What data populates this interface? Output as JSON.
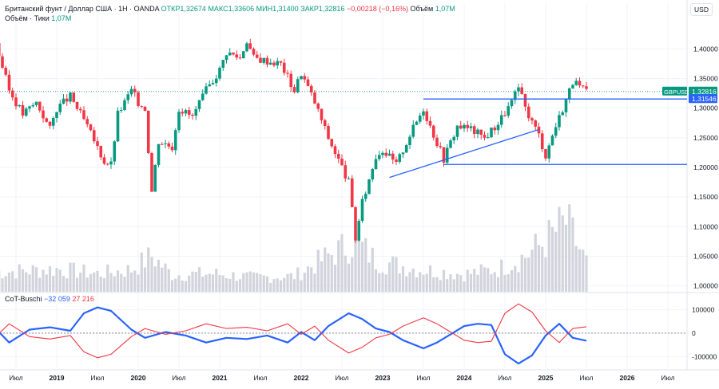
{
  "header": {
    "title": "Британский фунт / Доллар США · 1Н · OANDA",
    "open_label": "ОТКР",
    "open": "1,32674",
    "high_label": "МАКС",
    "high": "1,33606",
    "low_label": "МИН",
    "low": "1,31400",
    "close_label": "ЗАКР",
    "close": "1,32816",
    "change": "−0,00218 (−0,16%)",
    "volume_label": "Объём",
    "volume": "1,07M",
    "subtitle": "Объём · Тики",
    "subtitle_value": "1,07M",
    "currency_button": "USD"
  },
  "indicator": {
    "name": "CoT-Buschi",
    "value_blue": "−32 059",
    "value_red": "27 216"
  },
  "colors": {
    "up": "#089981",
    "down": "#f23645",
    "line": "#2962ff",
    "volume": "#d1d4dc",
    "grid": "#f0f3fa",
    "axis_text": "#131722"
  },
  "chart_data": [
    {
      "type": "candlestick",
      "symbol": "GBPUSD",
      "price_axis_ticks": [
        "1,40000",
        "1,35000",
        "1,30000",
        "1,25000",
        "1,20000",
        "1,15000",
        "1,10000",
        "1,05000",
        "1,00000"
      ],
      "price_axis_values": [
        1.4,
        1.35,
        1.3,
        1.25,
        1.2,
        1.15,
        1.1,
        1.05,
        1.0
      ],
      "ylim": [
        0.99,
        1.445
      ],
      "time_axis_labels": [
        "Июл",
        "2019",
        "Июл",
        "2020",
        "Июл",
        "2021",
        "Июл",
        "2022",
        "Июл",
        "2023",
        "Июл",
        "2024",
        "Июл",
        "2025",
        "Июл",
        "2026",
        "Июл"
      ],
      "time_axis_dates": [
        "2018-07",
        "2019-01",
        "2019-07",
        "2020-01",
        "2020-07",
        "2021-01",
        "2021-07",
        "2022-01",
        "2022-07",
        "2023-01",
        "2023-07",
        "2024-01",
        "2024-07",
        "2025-01",
        "2025-07",
        "2026-01",
        "2026-07"
      ],
      "price_path": [
        [
          "2018-04",
          1.41
        ],
        [
          "2018-06",
          1.33
        ],
        [
          "2018-08",
          1.29
        ],
        [
          "2018-10",
          1.31
        ],
        [
          "2018-12",
          1.265
        ],
        [
          "2019-01",
          1.3
        ],
        [
          "2019-03",
          1.32
        ],
        [
          "2019-05",
          1.28
        ],
        [
          "2019-08",
          1.21
        ],
        [
          "2019-09",
          1.205
        ],
        [
          "2019-10",
          1.29
        ],
        [
          "2019-12",
          1.33
        ],
        [
          "2020-01",
          1.31
        ],
        [
          "2020-02",
          1.3
        ],
        [
          "2020-03",
          1.16
        ],
        [
          "2020-04",
          1.245
        ],
        [
          "2020-06",
          1.235
        ],
        [
          "2020-07",
          1.3
        ],
        [
          "2020-09",
          1.285
        ],
        [
          "2020-11",
          1.33
        ],
        [
          "2021-01",
          1.365
        ],
        [
          "2021-02",
          1.395
        ],
        [
          "2021-04",
          1.385
        ],
        [
          "2021-05",
          1.415
        ],
        [
          "2021-06",
          1.385
        ],
        [
          "2021-08",
          1.38
        ],
        [
          "2021-10",
          1.375
        ],
        [
          "2021-12",
          1.33
        ],
        [
          "2022-01",
          1.36
        ],
        [
          "2022-03",
          1.31
        ],
        [
          "2022-05",
          1.25
        ],
        [
          "2022-07",
          1.2
        ],
        [
          "2022-08",
          1.175
        ],
        [
          "2022-09",
          1.08
        ],
        [
          "2022-10",
          1.14
        ],
        [
          "2022-12",
          1.22
        ],
        [
          "2023-01",
          1.23
        ],
        [
          "2023-03",
          1.205
        ],
        [
          "2023-05",
          1.255
        ],
        [
          "2023-07",
          1.3
        ],
        [
          "2023-08",
          1.27
        ],
        [
          "2023-10",
          1.215
        ],
        [
          "2023-12",
          1.27
        ],
        [
          "2024-02",
          1.265
        ],
        [
          "2024-04",
          1.25
        ],
        [
          "2024-06",
          1.275
        ],
        [
          "2024-08",
          1.31
        ],
        [
          "2024-09",
          1.335
        ],
        [
          "2024-10",
          1.3
        ],
        [
          "2024-12",
          1.255
        ],
        [
          "2025-01",
          1.22
        ],
        [
          "2025-02",
          1.255
        ],
        [
          "2025-04",
          1.315
        ],
        [
          "2025-05",
          1.345
        ],
        [
          "2025-06",
          1.335
        ],
        [
          "2025-07",
          1.328
        ]
      ],
      "last_price_label": "1,32816",
      "last_price": 1.32816,
      "price_labels": [
        {
          "value": 1.31546,
          "text": "1,31546"
        }
      ],
      "trendlines": [
        {
          "from": [
            "2023-07",
            1.3155
          ],
          "to": [
            "2026-10",
            1.3155
          ]
        },
        {
          "from": [
            "2023-10",
            1.205
          ],
          "to": [
            "2026-10",
            1.205
          ]
        },
        {
          "from": [
            "2023-02",
            1.183
          ],
          "to": [
            "2024-12",
            1.264
          ]
        }
      ],
      "volume": {
        "ylim": [
          0,
          1.12
        ],
        "path": [
          [
            "2018-04",
            0.3
          ],
          [
            "2019-01",
            0.35
          ],
          [
            "2019-07",
            0.28
          ],
          [
            "2019-12",
            0.34
          ],
          [
            "2020-03",
            0.55
          ],
          [
            "2020-06",
            0.26
          ],
          [
            "2020-12",
            0.28
          ],
          [
            "2021-06",
            0.22
          ],
          [
            "2021-12",
            0.24
          ],
          [
            "2022-05",
            0.55
          ],
          [
            "2022-09",
            0.78
          ],
          [
            "2022-12",
            0.48
          ],
          [
            "2023-06",
            0.35
          ],
          [
            "2024-01",
            0.27
          ],
          [
            "2024-06",
            0.35
          ],
          [
            "2024-10",
            0.55
          ],
          [
            "2025-01",
            0.78
          ],
          [
            "2025-04",
            1.07
          ],
          [
            "2025-07",
            0.45
          ]
        ]
      }
    },
    {
      "type": "line",
      "name": "CoT-Buschi",
      "y_ticks": [
        "100000",
        "0",
        "-100000"
      ],
      "y_tick_values": [
        100000,
        0,
        -100000
      ],
      "ylim": [
        -150000,
        170000
      ],
      "series": [
        {
          "name": "−32 059",
          "color": "#2962ff",
          "points": [
            [
              "2018-04",
              20000
            ],
            [
              "2018-06",
              -40000
            ],
            [
              "2018-09",
              15000
            ],
            [
              "2018-12",
              25000
            ],
            [
              "2019-03",
              10000
            ],
            [
              "2019-05",
              85000
            ],
            [
              "2019-07",
              110000
            ],
            [
              "2019-09",
              95000
            ],
            [
              "2019-12",
              15000
            ],
            [
              "2020-02",
              -20000
            ],
            [
              "2020-05",
              5000
            ],
            [
              "2020-08",
              -10000
            ],
            [
              "2020-11",
              -40000
            ],
            [
              "2021-02",
              -20000
            ],
            [
              "2021-05",
              -25000
            ],
            [
              "2021-08",
              -10000
            ],
            [
              "2021-11",
              -40000
            ],
            [
              "2022-01",
              5000
            ],
            [
              "2022-03",
              -30000
            ],
            [
              "2022-05",
              30000
            ],
            [
              "2022-08",
              85000
            ],
            [
              "2022-10",
              60000
            ],
            [
              "2022-12",
              20000
            ],
            [
              "2023-02",
              5000
            ],
            [
              "2023-04",
              -30000
            ],
            [
              "2023-07",
              -65000
            ],
            [
              "2023-09",
              -40000
            ],
            [
              "2023-11",
              -5000
            ],
            [
              "2024-01",
              30000
            ],
            [
              "2024-03",
              40000
            ],
            [
              "2024-05",
              35000
            ],
            [
              "2024-07",
              -90000
            ],
            [
              "2024-09",
              -130000
            ],
            [
              "2024-11",
              -95000
            ],
            [
              "2025-01",
              -10000
            ],
            [
              "2025-03",
              40000
            ],
            [
              "2025-05",
              -20000
            ],
            [
              "2025-07",
              -32059
            ]
          ]
        },
        {
          "name": "27 216",
          "color": "#f23645",
          "points": [
            [
              "2018-04",
              -15000
            ],
            [
              "2018-06",
              40000
            ],
            [
              "2018-09",
              -15000
            ],
            [
              "2018-12",
              -25000
            ],
            [
              "2019-03",
              -10000
            ],
            [
              "2019-05",
              -80000
            ],
            [
              "2019-07",
              -105000
            ],
            [
              "2019-09",
              -90000
            ],
            [
              "2019-12",
              -15000
            ],
            [
              "2020-02",
              20000
            ],
            [
              "2020-05",
              -5000
            ],
            [
              "2020-08",
              10000
            ],
            [
              "2020-11",
              40000
            ],
            [
              "2021-02",
              20000
            ],
            [
              "2021-05",
              25000
            ],
            [
              "2021-08",
              10000
            ],
            [
              "2021-11",
              40000
            ],
            [
              "2022-01",
              -5000
            ],
            [
              "2022-03",
              30000
            ],
            [
              "2022-05",
              -30000
            ],
            [
              "2022-08",
              -85000
            ],
            [
              "2022-10",
              -60000
            ],
            [
              "2022-12",
              -20000
            ],
            [
              "2023-02",
              -5000
            ],
            [
              "2023-04",
              30000
            ],
            [
              "2023-07",
              65000
            ],
            [
              "2023-09",
              40000
            ],
            [
              "2023-11",
              5000
            ],
            [
              "2024-01",
              -30000
            ],
            [
              "2024-03",
              -40000
            ],
            [
              "2024-05",
              -35000
            ],
            [
              "2024-07",
              85000
            ],
            [
              "2024-09",
              125000
            ],
            [
              "2024-11",
              90000
            ],
            [
              "2025-01",
              10000
            ],
            [
              "2025-03",
              -40000
            ],
            [
              "2025-05",
              20000
            ],
            [
              "2025-07",
              27216
            ]
          ]
        }
      ]
    }
  ]
}
